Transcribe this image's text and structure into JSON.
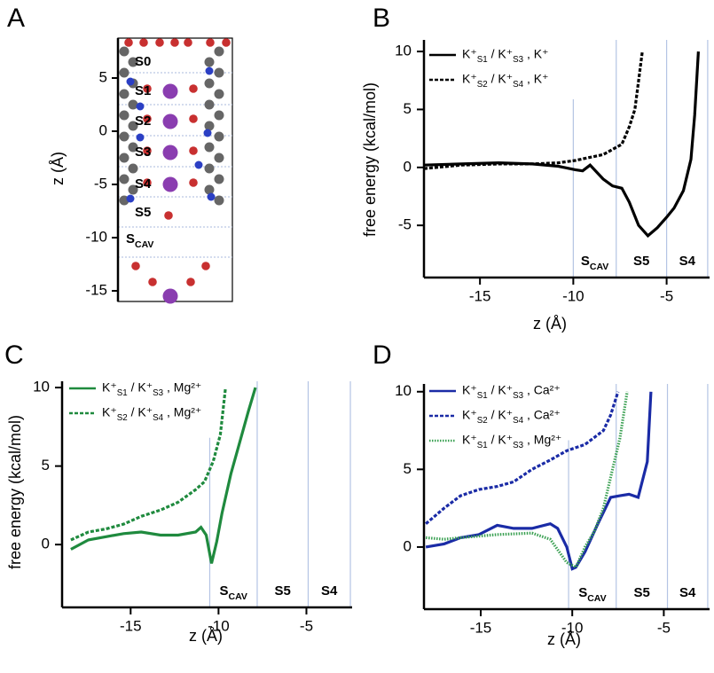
{
  "chart_data": [
    {
      "type": "structure",
      "panel": "A",
      "ylabel": "z (Å)",
      "ylim": [
        -16,
        8.75
      ],
      "yticks": [
        -15,
        -10,
        -5,
        0,
        5
      ],
      "site_labels": [
        "S0",
        "S1",
        "S2",
        "S3",
        "S4",
        "S5",
        "SCAV"
      ]
    },
    {
      "type": "line",
      "panel": "B",
      "xlabel": "z (Å)",
      "ylabel": "free energy (kcal/mol)",
      "xlim": [
        -18,
        -2.7
      ],
      "ylim": [
        -9.5,
        11
      ],
      "xticks": [
        -15,
        -10,
        -5
      ],
      "yticks": [
        -5,
        0,
        5,
        10
      ],
      "boundaries": [
        -10,
        -7.7,
        -5,
        -2.8
      ],
      "region_labels": [
        "SCAV",
        "S5",
        "S4"
      ],
      "series": [
        {
          "name": "K⁺S1 / K⁺S3 , K⁺",
          "color": "#000000",
          "style": "solid",
          "x": [
            -18,
            -16,
            -14,
            -12.2,
            -10.8,
            -9.9,
            -9.5,
            -9.1,
            -8.4,
            -7.9,
            -7.4,
            -7,
            -6.5,
            -6,
            -5.5,
            -5,
            -4.6,
            -4.1,
            -3.7,
            -3.5,
            -3.3
          ],
          "values": [
            0.2,
            0.3,
            0.4,
            0.3,
            0.1,
            -0.2,
            -0.3,
            0.2,
            -1,
            -1.6,
            -1.8,
            -3,
            -5,
            -5.9,
            -5.2,
            -4.3,
            -3.5,
            -2,
            0.7,
            4.5,
            10
          ]
        },
        {
          "name": "K⁺S2 / K⁺S4 , K⁺",
          "color": "#000000",
          "style": "dashed",
          "x": [
            -18,
            -16,
            -14,
            -12.2,
            -10.8,
            -9.9,
            -9.3,
            -8.4,
            -7.4,
            -7,
            -6.7,
            -6.5,
            -6.3
          ],
          "values": [
            -0.1,
            0.2,
            0.3,
            0.3,
            0.4,
            0.6,
            0.8,
            1.1,
            2,
            3.5,
            5,
            7.5,
            10
          ]
        }
      ]
    },
    {
      "type": "line",
      "panel": "C",
      "xlabel": "z (Å)",
      "ylabel": "free energy (kcal/mol)",
      "xlim": [
        -18.9,
        -2.4
      ],
      "ylim": [
        -4,
        10.4
      ],
      "xticks": [
        -15,
        -10,
        -5
      ],
      "yticks": [
        0,
        5,
        10
      ],
      "boundaries": [
        -10.5,
        -7.8,
        -4.9,
        -2.5
      ],
      "region_labels": [
        "SCAV",
        "S5",
        "S4"
      ],
      "series": [
        {
          "name": "K⁺S1 / K⁺S3 , Mg²⁺",
          "color": "#1f8a3e",
          "style": "solid",
          "x": [
            -18.4,
            -17.4,
            -16.4,
            -15.4,
            -14.4,
            -13.3,
            -12.3,
            -11.3,
            -11.0,
            -10.7,
            -10.4,
            -10.1,
            -9.8,
            -9.3,
            -8.8,
            -8.3,
            -7.9
          ],
          "values": [
            -0.3,
            0.3,
            0.5,
            0.7,
            0.8,
            0.6,
            0.6,
            0.8,
            1.1,
            0.6,
            -1.2,
            0.2,
            2,
            4.5,
            6.5,
            8.5,
            10
          ]
        },
        {
          "name": "K⁺S2 / K⁺S4 , Mg²⁺",
          "color": "#1f8a3e",
          "style": "dashed",
          "x": [
            -18.4,
            -17.4,
            -16.4,
            -15.4,
            -14.4,
            -13.3,
            -12.3,
            -11.3,
            -10.8,
            -10.3,
            -9.9,
            -9.6
          ],
          "values": [
            0.3,
            0.8,
            1,
            1.3,
            1.8,
            2.2,
            2.7,
            3.5,
            4,
            5.3,
            7,
            10
          ]
        }
      ]
    },
    {
      "type": "line",
      "panel": "D",
      "xlabel": "z (Å)",
      "xlim": [
        -18.1,
        -2.5
      ],
      "ylim": [
        -4,
        10.5
      ],
      "xticks": [
        -15,
        -10,
        -5
      ],
      "yticks": [
        0,
        5,
        10
      ],
      "boundaries": [
        -10.2,
        -7.6,
        -4.8,
        -2.6
      ],
      "region_labels": [
        "SCAV",
        "S5",
        "S4"
      ],
      "series": [
        {
          "name": "K⁺S1 / K⁺S3 , Ca²⁺",
          "color": "#1a2ba6",
          "style": "solid",
          "x": [
            -18,
            -17,
            -16.1,
            -15.1,
            -14.1,
            -13.2,
            -12.2,
            -11.2,
            -10.8,
            -10.3,
            -10,
            -9.8,
            -9.3,
            -8.6,
            -7.9,
            -7.4,
            -6.9,
            -6.4,
            -5.9,
            -5.7
          ],
          "values": [
            0,
            0.2,
            0.6,
            0.8,
            1.4,
            1.2,
            1.2,
            1.5,
            1.2,
            0,
            -1.4,
            -1.3,
            -0.3,
            1.5,
            3.2,
            3.3,
            3.4,
            3.2,
            5.5,
            10
          ]
        },
        {
          "name": "K⁺S2 / K⁺S4 , Ca²⁺",
          "color": "#1a2ba6",
          "style": "dashed",
          "x": [
            -18,
            -17,
            -16.1,
            -15.1,
            -14.1,
            -13.2,
            -12.2,
            -11.2,
            -10.3,
            -9.3,
            -8.3,
            -7.9,
            -7.5
          ],
          "values": [
            1.5,
            2.5,
            3.3,
            3.7,
            3.9,
            4.2,
            5,
            5.6,
            6.2,
            6.6,
            7.5,
            8.5,
            10
          ]
        },
        {
          "name": "K⁺S1 / K⁺S3 , Mg²⁺",
          "color": "#3aa052",
          "style": "dotted",
          "x": [
            -18,
            -17,
            -16.1,
            -14.1,
            -12.2,
            -11.2,
            -10.3,
            -9.8,
            -9.3,
            -8.8,
            -8.3,
            -7.9,
            -7.4,
            -7.0
          ],
          "values": [
            0.6,
            0.5,
            0.6,
            0.8,
            0.9,
            0.5,
            -1,
            -1.3,
            0,
            1,
            2.5,
            4.5,
            7,
            10
          ]
        }
      ]
    }
  ]
}
